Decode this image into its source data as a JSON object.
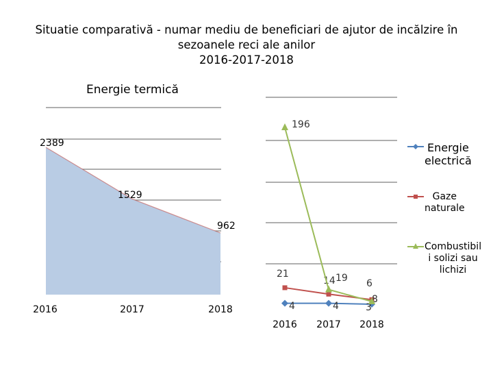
{
  "title": "Situatie comparativă - numar mediu de beneficiari de ajutor de incălzire în sezoanele reci ale anilor 2016-2017-2018",
  "title_lines": [
    "Situatie comparativă - numar mediu de beneficiari de ajutor de incălzire în",
    "sezoanele reci ale anilor",
    "2016-2017-2018"
  ],
  "colors": {
    "area_fill": "#b9cce4",
    "area_line": "#c0504d",
    "electric": "#4f81bd",
    "gas": "#c0504d",
    "solid": "#9bbb59",
    "grid": "#7f7f7f"
  },
  "chart_data": [
    {
      "type": "area",
      "title": "Energie termică",
      "categories": [
        "2016",
        "2017",
        "2018"
      ],
      "series": [
        {
          "name": "Energie termică",
          "values": [
            2389,
            1529,
            962
          ]
        }
      ],
      "data_labels": [
        "2389",
        "1529",
        "962"
      ]
    },
    {
      "type": "line",
      "categories": [
        "2016",
        "2017",
        "2018"
      ],
      "ylim": [
        0,
        200
      ],
      "legend_position": "right",
      "series": [
        {
          "name": "Energie electrică",
          "values": [
            4,
            4,
            3
          ],
          "labels": [
            "4",
            "4",
            "3"
          ],
          "color_key": "electric",
          "marker": "diamond"
        },
        {
          "name": "Gaze naturale",
          "values": [
            21,
            14,
            8
          ],
          "labels": [
            "21",
            "14",
            "8"
          ],
          "color_key": "gas",
          "marker": "square"
        },
        {
          "name": "Combustibil i solizi sau lichizi",
          "values": [
            196,
            19,
            6
          ],
          "labels": [
            "196",
            "19",
            "6"
          ],
          "color_key": "solid",
          "marker": "triangle"
        }
      ]
    }
  ],
  "legend": [
    {
      "lines": [
        "Energie",
        "electrică"
      ]
    },
    {
      "lines": [
        "Gaze",
        "naturale"
      ]
    },
    {
      "lines": [
        "Combustibil",
        "i solizi sau",
        "lichizi"
      ]
    }
  ]
}
